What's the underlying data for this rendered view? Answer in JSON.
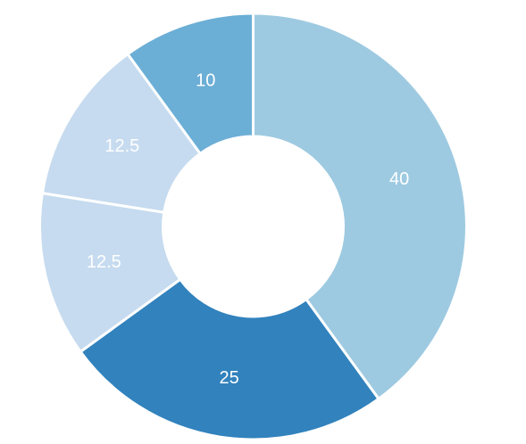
{
  "chart_data": {
    "type": "pie",
    "donut": true,
    "title": "",
    "legend": "none",
    "start_angle_deg": 0,
    "direction": "clockwise",
    "slices": [
      {
        "label": "40",
        "value": 40,
        "color": "#9ecae1"
      },
      {
        "label": "25",
        "value": 25,
        "color": "#3182bd"
      },
      {
        "label": "12.5",
        "value": 12.5,
        "color": "#c6dbef"
      },
      {
        "label": "12.5",
        "value": 12.5,
        "color": "#c6dbef"
      },
      {
        "label": "10",
        "value": 10,
        "color": "#6baed6"
      }
    ]
  }
}
